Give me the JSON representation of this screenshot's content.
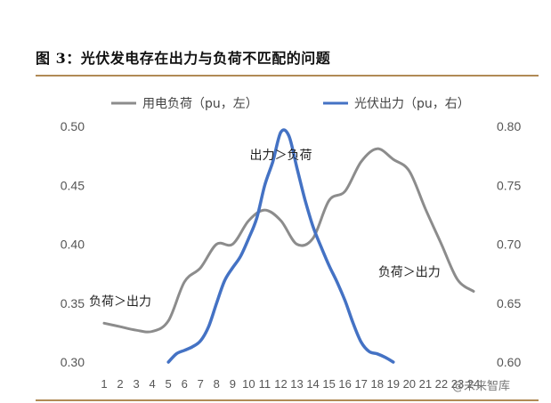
{
  "figure_title": "图 3：光伏发电存在出力与负荷不匹配的问题",
  "watermark": "@未来智库",
  "colors": {
    "load": "#8c8c8c",
    "pv": "#4472c4",
    "rule": "#b08a55"
  },
  "chart_data": {
    "type": "line",
    "x": [
      1,
      2,
      3,
      4,
      5,
      6,
      7,
      8,
      9,
      10,
      11,
      12,
      13,
      14,
      15,
      16,
      17,
      18,
      19,
      20,
      21,
      22,
      23,
      24
    ],
    "x_tick_labels": [
      "1",
      "2",
      "3",
      "4",
      "5",
      "6",
      "7",
      "8",
      "9",
      "10",
      "11",
      "12",
      "13",
      "14",
      "15",
      "16",
      "17",
      "18",
      "19",
      "20",
      "21",
      "22",
      "23",
      "24"
    ],
    "y_left": {
      "ylim": [
        0.3,
        0.5
      ],
      "ticks": [
        "0.30",
        "0.35",
        "0.40",
        "0.45",
        "0.50"
      ]
    },
    "y_right": {
      "ylim": [
        0.6,
        0.8
      ],
      "ticks": [
        "0.60",
        "0.65",
        "0.70",
        "0.75",
        "0.80"
      ]
    },
    "legend_position": "top",
    "series": [
      {
        "name": "用电负荷（pu，左）",
        "axis": "left",
        "x": [
          1,
          2,
          3,
          4,
          5,
          6,
          7,
          8,
          9,
          10,
          11,
          12,
          13,
          14,
          15,
          16,
          17,
          18,
          19,
          20,
          21,
          22,
          23,
          24
        ],
        "values": [
          0.333,
          0.33,
          0.327,
          0.326,
          0.335,
          0.368,
          0.38,
          0.4,
          0.4,
          0.42,
          0.429,
          0.42,
          0.4,
          0.405,
          0.437,
          0.445,
          0.47,
          0.481,
          0.472,
          0.462,
          0.43,
          0.4,
          0.37,
          0.36
        ]
      },
      {
        "name": "光伏出力（pu，右）",
        "axis": "right",
        "x": [
          5,
          5.5,
          6,
          6.5,
          7,
          7.5,
          8,
          8.5,
          9,
          9.5,
          10,
          10.5,
          11,
          11.5,
          12,
          12.5,
          13,
          13.5,
          14,
          14.5,
          15,
          15.5,
          16,
          16.5,
          17,
          17.5,
          18,
          18.5,
          19
        ],
        "values": [
          0.6,
          0.607,
          0.61,
          0.613,
          0.618,
          0.63,
          0.65,
          0.669,
          0.68,
          0.69,
          0.705,
          0.722,
          0.75,
          0.77,
          0.795,
          0.792,
          0.765,
          0.738,
          0.715,
          0.698,
          0.682,
          0.668,
          0.652,
          0.633,
          0.617,
          0.609,
          0.607,
          0.604,
          0.6
        ]
      }
    ],
    "annotations": [
      {
        "text": "出力＞负荷",
        "x": 12,
        "axis": "left",
        "y": 0.472
      },
      {
        "text": "负荷＞出力",
        "x": 2,
        "axis": "left",
        "y": 0.348
      },
      {
        "text": "负荷＞出力",
        "x": 20,
        "axis": "left",
        "y": 0.373
      }
    ]
  }
}
